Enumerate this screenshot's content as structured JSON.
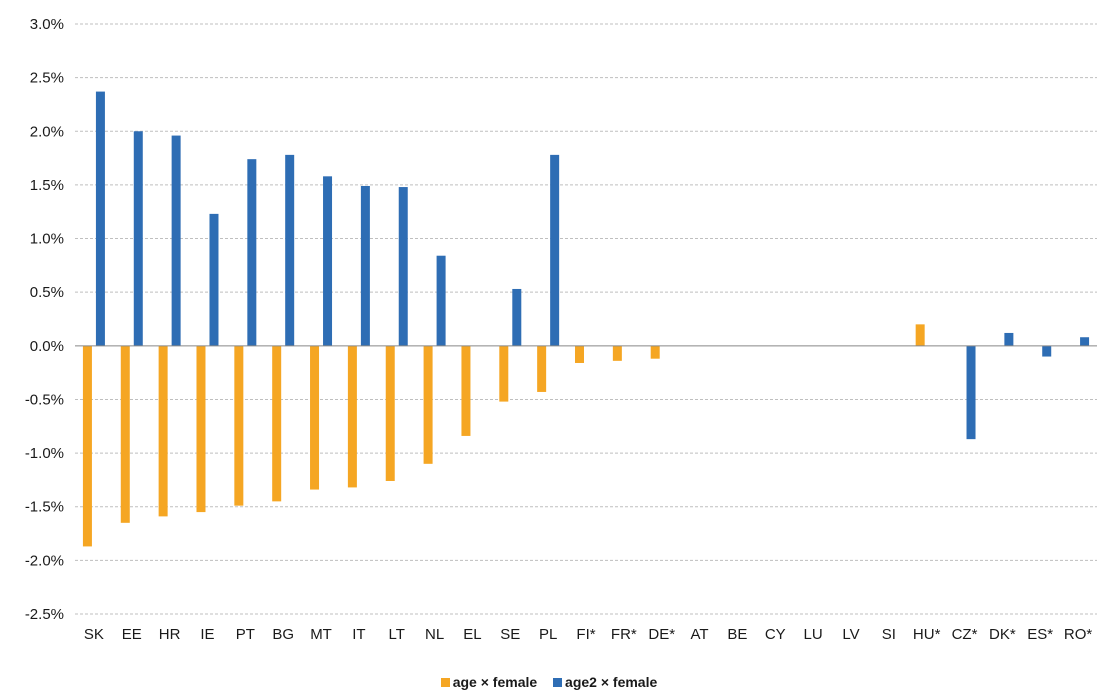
{
  "chart_data": {
    "type": "bar",
    "title": "",
    "xlabel": "",
    "ylabel": "",
    "ylim": [
      -0.025,
      0.03
    ],
    "yticks": [
      "3.0%",
      "2.5%",
      "2.0%",
      "1.5%",
      "1.0%",
      "0.5%",
      "0.0%",
      "-0.5%",
      "-1.0%",
      "-1.5%",
      "-2.0%",
      "-2.5%"
    ],
    "ytick_values": [
      0.03,
      0.025,
      0.02,
      0.015,
      0.01,
      0.005,
      0.0,
      -0.005,
      -0.01,
      -0.015,
      -0.02,
      -0.025
    ],
    "grid": "horizontal dashed",
    "legend_position": "bottom",
    "categories": [
      "SK",
      "EE",
      "HR",
      "IE",
      "PT",
      "BG",
      "MT",
      "IT",
      "LT",
      "NL",
      "EL",
      "SE",
      "PL",
      "FI*",
      "FR*",
      "DE*",
      "AT",
      "BE",
      "CY",
      "LU",
      "LV",
      "SI",
      "HU*",
      "CZ*",
      "DK*",
      "ES*",
      "RO*"
    ],
    "series": [
      {
        "name": "age × female",
        "color": "#F5A623",
        "values": [
          -0.0187,
          -0.0165,
          -0.0159,
          -0.0155,
          -0.0149,
          -0.0145,
          -0.0134,
          -0.0132,
          -0.0126,
          -0.011,
          -0.0084,
          -0.0052,
          -0.0043,
          -0.0016,
          -0.0014,
          -0.0012,
          0,
          0,
          0,
          0,
          0,
          0,
          0.002,
          0,
          0,
          0,
          0
        ]
      },
      {
        "name": "age2 × female",
        "color": "#2E6DB4",
        "values": [
          0.0237,
          0.02,
          0.0196,
          0.0123,
          0.0174,
          0.0178,
          0.0158,
          0.0149,
          0.0148,
          0.0084,
          0,
          0.0053,
          0.0178,
          0,
          0,
          0,
          0,
          0,
          0,
          0,
          0,
          0,
          0,
          -0.0087,
          0.0012,
          -0.001,
          0.0008
        ]
      }
    ]
  }
}
